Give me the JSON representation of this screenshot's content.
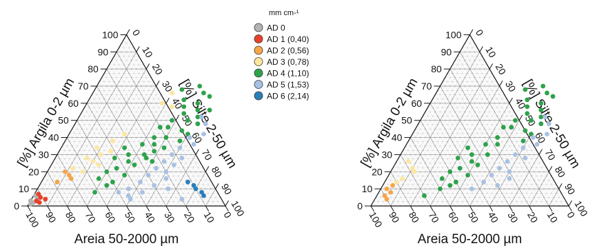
{
  "chart_data": [
    {
      "type": "scatter",
      "chart_kind": "ternary",
      "axes": {
        "left": {
          "label": "[%] Argila 0-2 µm",
          "component": "clay",
          "ticks": [
            "0",
            "10",
            "20",
            "30",
            "40",
            "50",
            "60",
            "70",
            "80",
            "90",
            "100"
          ]
        },
        "right": {
          "label": "[%] Silte 2-50 µm",
          "component": "silt",
          "ticks": [
            "0",
            "10",
            "20",
            "30",
            "40",
            "50",
            "60",
            "70",
            "80",
            "90",
            "100"
          ]
        },
        "bottom": {
          "label": "Areia 50-2000 µm",
          "component": "sand",
          "ticks": [
            "100",
            "90",
            "80",
            "70",
            "60",
            "50",
            "40",
            "30",
            "20",
            "10",
            "0"
          ]
        }
      },
      "grid": true,
      "legend": {
        "placement": "right",
        "title": "mm cm-¹",
        "entries": [
          {
            "label": "AD 0",
            "color": "#b3b3b3"
          },
          {
            "label": "AD 1 (0,40)",
            "color": "#e8402a"
          },
          {
            "label": "AD 2 (0,56)",
            "color": "#f5a64a"
          },
          {
            "label": "AD 3 (0,78)",
            "color": "#fde6a0"
          },
          {
            "label": "AD 4 (1,10)",
            "color": "#2ea24b"
          },
          {
            "label": "AD 5 (1,53)",
            "color": "#a9c1e3"
          },
          {
            "label": "AD 6 (2,14)",
            "color": "#2a7fb8"
          }
        ]
      },
      "series": [
        {
          "name": "AD 0",
          "color": "#b3b3b3",
          "points": [
            [
              1,
              1
            ],
            [
              2,
              2
            ],
            [
              3,
              0
            ],
            [
              4,
              3
            ],
            [
              6,
              1
            ]
          ]
        },
        {
          "name": "AD 1 (0,40)",
          "color": "#e8402a",
          "points": [
            [
              3,
              3
            ],
            [
              5,
              4
            ],
            [
              4,
              7
            ],
            [
              7,
              2
            ],
            [
              2,
              5
            ]
          ]
        },
        {
          "name": "AD 2 (0,56)",
          "color": "#f5a64a",
          "points": [
            [
              14,
              8
            ],
            [
              18,
              12
            ],
            [
              20,
              9
            ],
            [
              16,
              14
            ]
          ]
        },
        {
          "name": "AD 3 (0,78)",
          "color": "#fde6a0",
          "points": [
            [
              22,
              12
            ],
            [
              26,
              20
            ],
            [
              28,
              16
            ],
            [
              24,
              24
            ],
            [
              30,
              22
            ],
            [
              20,
              18
            ],
            [
              32,
              26
            ],
            [
              34,
              18
            ],
            [
              60,
              38
            ],
            [
              66,
              40
            ],
            [
              58,
              44
            ],
            [
              42,
              28
            ],
            [
              38,
              24
            ]
          ]
        },
        {
          "name": "AD 4 (1,10)",
          "color": "#2ea24b",
          "points": [
            [
              68,
              44
            ],
            [
              62,
              48
            ],
            [
              70,
              52
            ],
            [
              58,
              50
            ],
            [
              66,
              56
            ],
            [
              54,
              52
            ],
            [
              50,
              56
            ],
            [
              46,
              48
            ],
            [
              40,
              44
            ],
            [
              36,
              40
            ],
            [
              30,
              36
            ],
            [
              28,
              30
            ],
            [
              34,
              32
            ],
            [
              26,
              38
            ],
            [
              22,
              34
            ],
            [
              44,
              56
            ],
            [
              48,
              62
            ],
            [
              42,
              60
            ],
            [
              38,
              58
            ],
            [
              52,
              60
            ],
            [
              46,
              44
            ],
            [
              56,
              58
            ],
            [
              60,
              56
            ],
            [
              24,
              42
            ],
            [
              30,
              44
            ],
            [
              18,
              40
            ],
            [
              14,
              36
            ],
            [
              34,
              52
            ],
            [
              20,
              30
            ],
            [
              16,
              28
            ],
            [
              12,
              34
            ],
            [
              40,
              50
            ],
            [
              28,
              46
            ],
            [
              8,
              30
            ],
            [
              50,
              48
            ],
            [
              36,
              46
            ],
            [
              64,
              60
            ],
            [
              56,
              64
            ],
            [
              32,
              48
            ],
            [
              26,
              50
            ]
          ]
        },
        {
          "name": "AD 5 (1,53)",
          "color": "#a9c1e3",
          "points": [
            [
              52,
              62
            ],
            [
              48,
              66
            ],
            [
              40,
              62
            ],
            [
              34,
              60
            ],
            [
              30,
              58
            ],
            [
              26,
              56
            ],
            [
              22,
              54
            ],
            [
              18,
              52
            ],
            [
              14,
              50
            ],
            [
              10,
              46
            ],
            [
              8,
              42
            ],
            [
              6,
              48
            ],
            [
              20,
              60
            ],
            [
              16,
              62
            ],
            [
              12,
              58
            ],
            [
              28,
              64
            ],
            [
              36,
              66
            ],
            [
              42,
              68
            ],
            [
              8,
              54
            ],
            [
              4,
              50
            ],
            [
              24,
              62
            ],
            [
              4,
              76
            ],
            [
              10,
              66
            ]
          ]
        },
        {
          "name": "AD 6 (2,14)",
          "color": "#2a7fb8",
          "points": [
            [
              10,
              80
            ],
            [
              8,
              84
            ],
            [
              6,
              86
            ],
            [
              12,
              78
            ],
            [
              14,
              74
            ]
          ]
        }
      ]
    },
    {
      "type": "scatter",
      "chart_kind": "ternary",
      "axes": {
        "left": {
          "label": "[%] Argila 0-2 µm",
          "component": "clay",
          "ticks": [
            "0",
            "10",
            "20",
            "30",
            "40",
            "50",
            "60",
            "70",
            "80",
            "90",
            "100"
          ]
        },
        "right": {
          "label": "[%] Silte 2-50 µm",
          "component": "silt",
          "ticks": [
            "0",
            "10",
            "20",
            "30",
            "40",
            "50",
            "60",
            "70",
            "80",
            "90",
            "100"
          ]
        },
        "bottom": {
          "label": "Areia 50-2000 µm",
          "component": "sand",
          "ticks": [
            "100",
            "90",
            "80",
            "70",
            "60",
            "50",
            "40",
            "30",
            "20",
            "10",
            "0"
          ]
        }
      },
      "grid": true,
      "series": [
        {
          "name": "AD 2 (0,56)",
          "color": "#f5a64a",
          "points": [
            [
              6,
              4
            ],
            [
              8,
              6
            ],
            [
              10,
              3
            ],
            [
              12,
              5
            ],
            [
              4,
              6
            ]
          ]
        },
        {
          "name": "AD 3 (0,78)",
          "color": "#fde6a0",
          "points": [
            [
              14,
              6
            ],
            [
              16,
              8
            ],
            [
              22,
              10
            ],
            [
              26,
              6
            ],
            [
              20,
              12
            ]
          ]
        },
        {
          "name": "AD 4 (1,10)",
          "color": "#2ea24b",
          "points": [
            [
              68,
              44
            ],
            [
              62,
              48
            ],
            [
              70,
              52
            ],
            [
              58,
              50
            ],
            [
              66,
              56
            ],
            [
              54,
              52
            ],
            [
              50,
              56
            ],
            [
              46,
              48
            ],
            [
              40,
              44
            ],
            [
              36,
              40
            ],
            [
              30,
              36
            ],
            [
              28,
              30
            ],
            [
              34,
              32
            ],
            [
              26,
              38
            ],
            [
              22,
              34
            ],
            [
              44,
              56
            ],
            [
              48,
              62
            ],
            [
              42,
              60
            ],
            [
              38,
              58
            ],
            [
              52,
              60
            ],
            [
              46,
              44
            ],
            [
              56,
              58
            ],
            [
              60,
              56
            ],
            [
              24,
              42
            ],
            [
              30,
              44
            ],
            [
              18,
              40
            ],
            [
              14,
              36
            ],
            [
              20,
              30
            ],
            [
              16,
              28
            ],
            [
              12,
              34
            ],
            [
              10,
              30
            ],
            [
              6,
              24
            ],
            [
              50,
              48
            ],
            [
              36,
              46
            ],
            [
              64,
              60
            ]
          ]
        },
        {
          "name": "AD 5 (1,53)",
          "color": "#a9c1e3",
          "points": [
            [
              52,
              62
            ],
            [
              48,
              66
            ],
            [
              40,
              62
            ],
            [
              34,
              60
            ],
            [
              30,
              58
            ],
            [
              26,
              56
            ],
            [
              22,
              54
            ],
            [
              18,
              52
            ],
            [
              14,
              50
            ],
            [
              10,
              46
            ],
            [
              20,
              60
            ],
            [
              16,
              62
            ],
            [
              12,
              58
            ],
            [
              28,
              64
            ],
            [
              36,
              66
            ],
            [
              42,
              68
            ]
          ]
        }
      ]
    }
  ]
}
